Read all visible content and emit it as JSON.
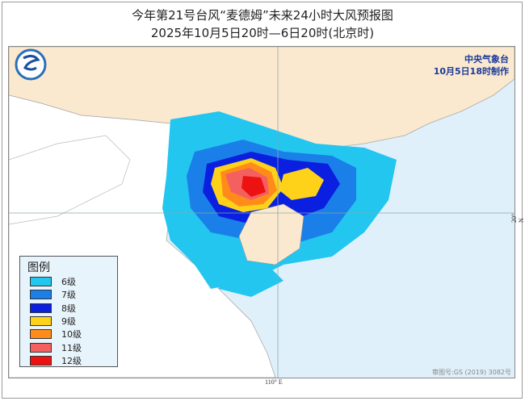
{
  "title": {
    "line1": "今年第21号台风“麦德姆”未来24小时大风预报图",
    "line2": "2025年10月5日20时—6日20时(北京时)"
  },
  "agency": {
    "name": "中央气象台",
    "issued": "10月5日18时制作"
  },
  "legend": {
    "title": "图例",
    "items": [
      {
        "label": "6级",
        "color": "#22c6ef"
      },
      {
        "label": "7级",
        "color": "#1a7fe8"
      },
      {
        "label": "8级",
        "color": "#0a1fe0"
      },
      {
        "label": "9级",
        "color": "#ffd21a"
      },
      {
        "label": "10级",
        "color": "#ff8c1a"
      },
      {
        "label": "11级",
        "color": "#f46060"
      },
      {
        "label": "12级",
        "color": "#ee1111"
      }
    ]
  },
  "axes": {
    "longitude_label": "110° E",
    "latitude_label": "20° N"
  },
  "approval_number": "审图号:GS (2019) 3082号",
  "colors": {
    "land": "#fbe9cf",
    "sea": "#dff0fa",
    "foreign_land": "#ffffff"
  }
}
